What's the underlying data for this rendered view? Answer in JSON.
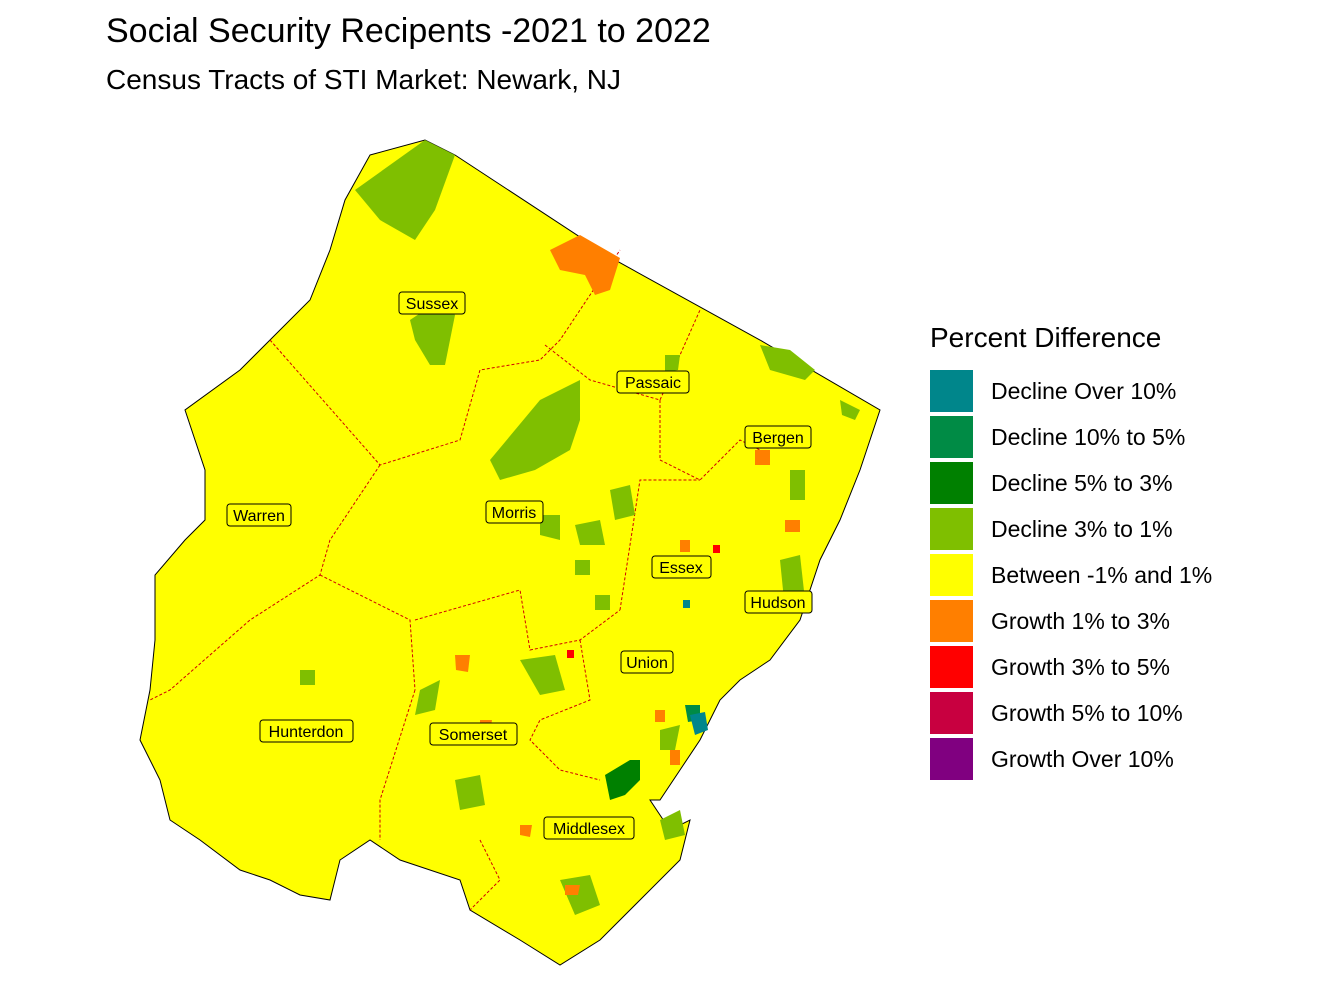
{
  "header": {
    "title": "Social Security Recipents -2021 to 2022",
    "subtitle": "Census Tracts of STI Market: Newark, NJ"
  },
  "legend": {
    "title": "Percent Difference",
    "items": [
      {
        "label": "Decline Over 10%",
        "color": "#00868B"
      },
      {
        "label": "Decline 10% to 5%",
        "color": "#008B45"
      },
      {
        "label": "Decline 5% to 3%",
        "color": "#008000"
      },
      {
        "label": "Decline 3% to 1%",
        "color": "#7FBF00"
      },
      {
        "label": "Between -1% and 1%",
        "color": "#FFFF00"
      },
      {
        "label": "Growth 1% to 3%",
        "color": "#FF7F00"
      },
      {
        "label": "Growth 3% to 5%",
        "color": "#FF0000"
      },
      {
        "label": "Growth 5% to 10%",
        "color": "#C80040"
      },
      {
        "label": "Growth Over 10%",
        "color": "#800080"
      }
    ]
  },
  "map": {
    "counties": [
      "Sussex",
      "Passaic",
      "Bergen",
      "Warren",
      "Morris",
      "Essex",
      "Hudson",
      "Union",
      "Hunterdon",
      "Somerset",
      "Middlesex"
    ],
    "border_color": "#FF0000",
    "base_color": "#FFFF00"
  }
}
